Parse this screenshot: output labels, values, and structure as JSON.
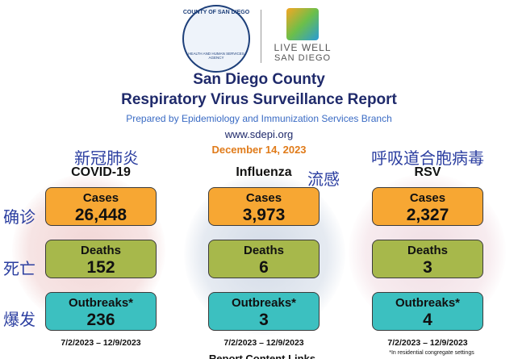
{
  "header": {
    "county_logo": "COUNTY OF SAN DIEGO",
    "county_logo_sub": "HEALTH AND HUMAN SERVICES AGENCY",
    "live_well": "LIVE WELL",
    "live_well_sub": "SAN DIEGO",
    "title_line1": "San Diego County",
    "title_line2": "Respiratory Virus Surveillance Report",
    "prepared_by": "Prepared by Epidemiology and Immunization Services Branch",
    "website": "www.sdepi.org",
    "date": "December 14, 2023"
  },
  "row_labels": [
    "确诊",
    "死亡",
    "爆发"
  ],
  "columns": [
    {
      "name": "COVID-19",
      "name_cn": "新冠肺炎",
      "cases_label": "Cases",
      "cases": "26,448",
      "deaths_label": "Deaths",
      "deaths": "152",
      "outbreaks_label": "Outbreaks*",
      "outbreaks": "236",
      "range": "7/2/2023 – 12/9/2023"
    },
    {
      "name": "Influenza",
      "name_cn": "流感",
      "cases_label": "Cases",
      "cases": "3,973",
      "deaths_label": "Deaths",
      "deaths": "6",
      "outbreaks_label": "Outbreaks*",
      "outbreaks": "3",
      "range": "7/2/2023 – 12/9/2023"
    },
    {
      "name": "RSV",
      "name_cn": "呼吸道合胞病毒",
      "cases_label": "Cases",
      "cases": "2,327",
      "deaths_label": "Deaths",
      "deaths": "3",
      "outbreaks_label": "Outbreaks*",
      "outbreaks": "4",
      "range": "7/2/2023 – 12/9/2023"
    }
  ],
  "footnote": "*In residential congregate settings",
  "links_heading": "Report Content Links"
}
